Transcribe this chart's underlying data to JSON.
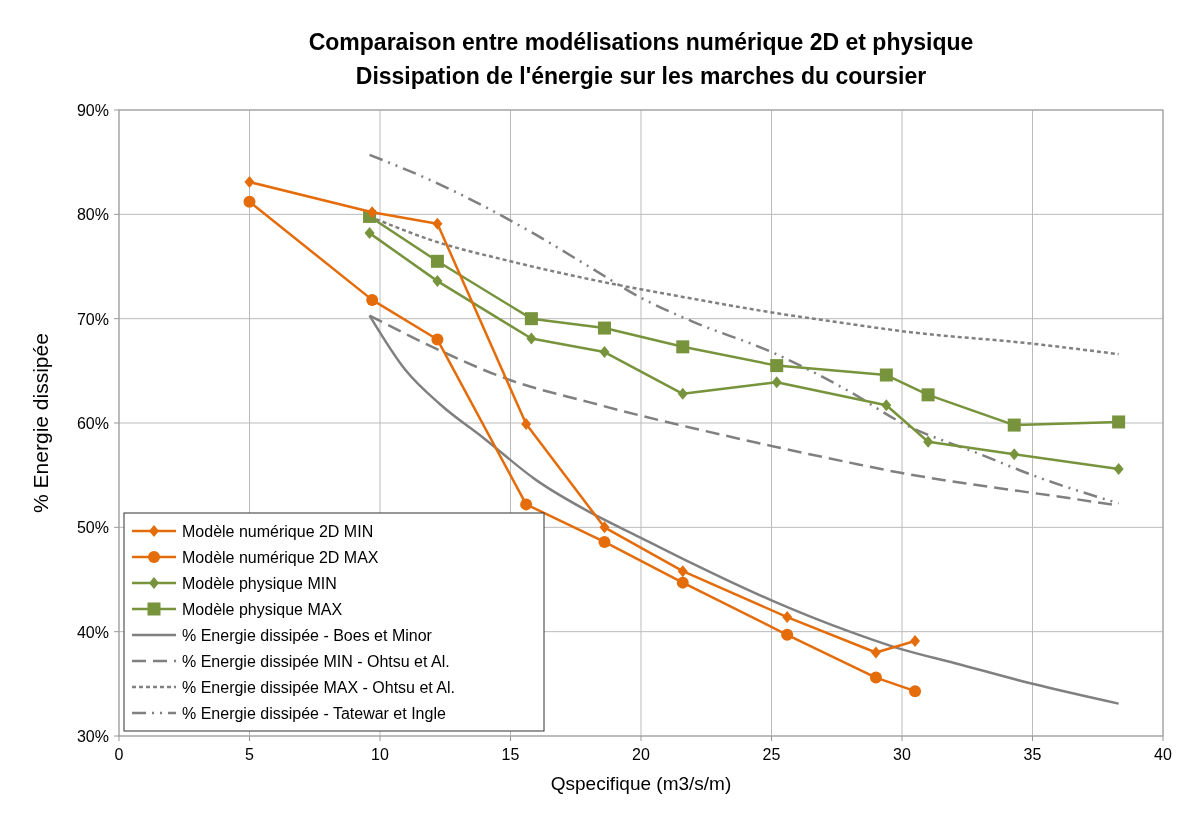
{
  "chart_data": {
    "type": "line",
    "title": "Comparaison entre modélisations numérique 2D et physique\nDissipation de l'énergie sur les marches du coursier",
    "xlabel": "Qspecifique (m3/s/m)",
    "ylabel": "% Energie dissipée",
    "xlim": [
      0,
      40
    ],
    "xticks": [
      0,
      5,
      10,
      15,
      20,
      25,
      30,
      35,
      40
    ],
    "ylim": [
      30,
      90
    ],
    "yticks": [
      {
        "value": 30,
        "label": "30%"
      },
      {
        "value": 40,
        "label": "40%"
      },
      {
        "value": 50,
        "label": "50%"
      },
      {
        "value": 60,
        "label": "60%"
      },
      {
        "value": 70,
        "label": "70%"
      },
      {
        "value": 80,
        "label": "80%"
      },
      {
        "value": 90,
        "label": "90%"
      }
    ],
    "grid": true,
    "legend": "bottom left",
    "series": [
      {
        "name": "Modèle numérique 2D MIN",
        "color": "#e46c0a",
        "marker": "diamond",
        "line_style": "solid",
        "x": [
          5,
          9.7,
          12.2,
          15.6,
          18.6,
          21.6,
          25.6,
          29,
          30.5
        ],
        "values": [
          83.1,
          80.2,
          79.1,
          59.9,
          50.0,
          45.8,
          41.4,
          38.0,
          39.1
        ]
      },
      {
        "name": "Modèle numérique 2D MAX",
        "color": "#e46c0a",
        "marker": "circle",
        "line_style": "solid",
        "x": [
          5,
          9.7,
          12.2,
          15.6,
          18.6,
          21.6,
          25.6,
          29,
          30.5
        ],
        "values": [
          81.2,
          71.8,
          68.0,
          52.2,
          48.6,
          44.7,
          39.7,
          35.6,
          34.3
        ]
      },
      {
        "name": "Modèle physique MIN",
        "color": "#77933c",
        "marker": "diamond",
        "line_style": "solid",
        "x": [
          9.6,
          12.2,
          15.8,
          18.6,
          21.6,
          25.2,
          29.4,
          31,
          34.3,
          38.3
        ],
        "values": [
          78.2,
          73.6,
          68.1,
          66.8,
          62.8,
          63.9,
          61.7,
          58.2,
          57.0,
          55.6
        ]
      },
      {
        "name": "Modèle physique MAX",
        "color": "#77933c",
        "marker": "square",
        "line_style": "solid",
        "x": [
          9.6,
          12.2,
          15.8,
          18.6,
          21.6,
          25.2,
          29.4,
          31,
          34.3,
          38.3
        ],
        "values": [
          79.8,
          75.5,
          70.0,
          69.1,
          67.3,
          65.5,
          64.6,
          62.7,
          59.8,
          60.1
        ]
      },
      {
        "name": "% Energie dissipée - Boes et Minor",
        "color": "#808080",
        "marker": "none",
        "line_style": "solid",
        "x": [
          9.6,
          11,
          12.3,
          14,
          16,
          18,
          20,
          22,
          25,
          28,
          30,
          32,
          35,
          38.3
        ],
        "values": [
          70.3,
          65,
          61.8,
          58.5,
          54.5,
          51.5,
          49,
          46.5,
          43,
          40,
          38.3,
          37,
          35,
          33.1
        ]
      },
      {
        "name": "% Energie dissipée MIN - Ohtsu et Al.",
        "color": "#808080",
        "marker": "none",
        "line_style": "longdash",
        "x": [
          9.6,
          12,
          15,
          18,
          20,
          22,
          25,
          28,
          30,
          33,
          35,
          38.3
        ],
        "values": [
          70.3,
          67.3,
          64.1,
          62,
          60.7,
          59.5,
          57.8,
          56.2,
          55.2,
          54,
          53.3,
          52.1
        ]
      },
      {
        "name": "% Energie dissipée MAX - Ohtsu et Al.",
        "color": "#808080",
        "marker": "none",
        "line_style": "dashed",
        "x": [
          9.6,
          12,
          15,
          18,
          22,
          25,
          28,
          30,
          35,
          38.3
        ],
        "values": [
          79.8,
          77.5,
          75.5,
          73.8,
          71.9,
          70.6,
          69.5,
          68.8,
          67.6,
          66.6
        ]
      },
      {
        "name": "% Energie dissipée - Tatewar et Ingle",
        "color": "#808080",
        "marker": "none",
        "line_style": "dashdotdot",
        "x": [
          9.6,
          12,
          16,
          18,
          20,
          22,
          25,
          28,
          30,
          33,
          35,
          38.3
        ],
        "values": [
          85.7,
          83.2,
          78,
          75,
          72,
          69.7,
          66.8,
          63,
          60,
          57,
          55,
          52.3
        ]
      }
    ]
  }
}
